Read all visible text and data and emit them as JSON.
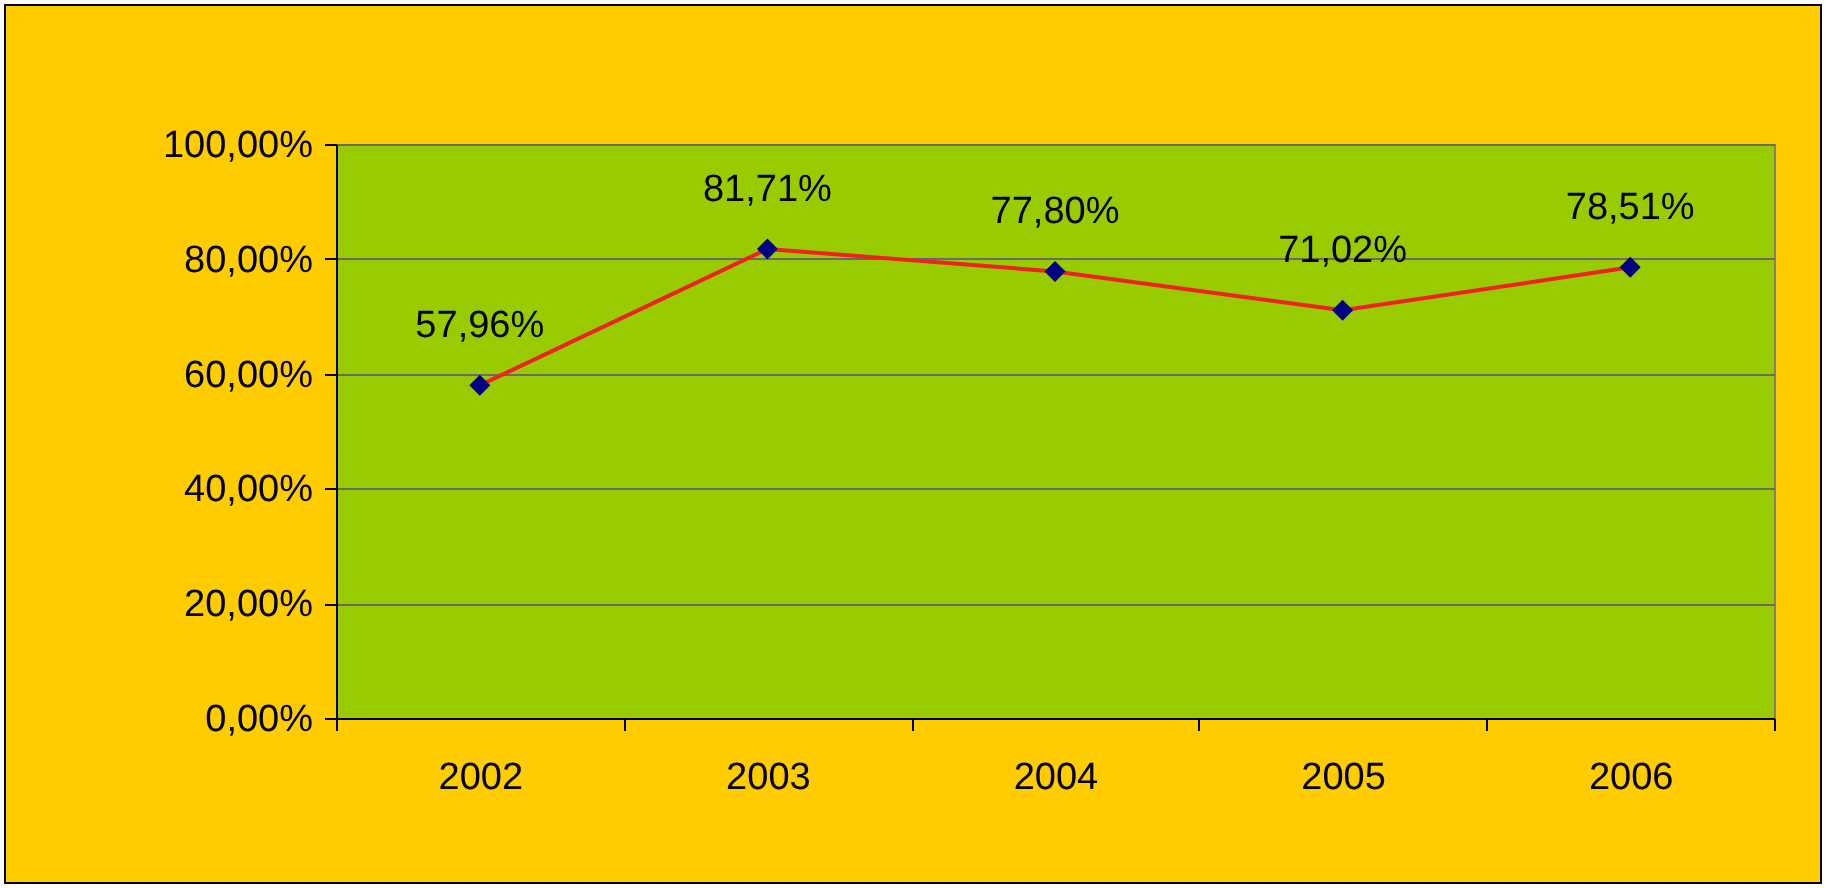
{
  "chart_data": {
    "type": "line",
    "categories": [
      "2002",
      "2003",
      "2004",
      "2005",
      "2006"
    ],
    "series": [
      {
        "color": "#ee2222",
        "values": [
          57.96,
          81.71,
          77.8,
          71.02,
          78.51
        ],
        "value_labels": [
          "57,96%",
          "81,71%",
          "77,80%",
          "71,02%",
          "78,51%"
        ]
      }
    ],
    "ylim": [
      0,
      100
    ],
    "yticks": [
      {
        "value": 0,
        "label": "0,00%"
      },
      {
        "value": 20,
        "label": "20,00%"
      },
      {
        "value": 40,
        "label": "40,00%"
      },
      {
        "value": 60,
        "label": "60,00%"
      },
      {
        "value": 80,
        "label": "80,00%"
      },
      {
        "value": 100,
        "label": "100,00%"
      }
    ],
    "grid": "y",
    "marker": "diamond",
    "line_style": "solid"
  }
}
